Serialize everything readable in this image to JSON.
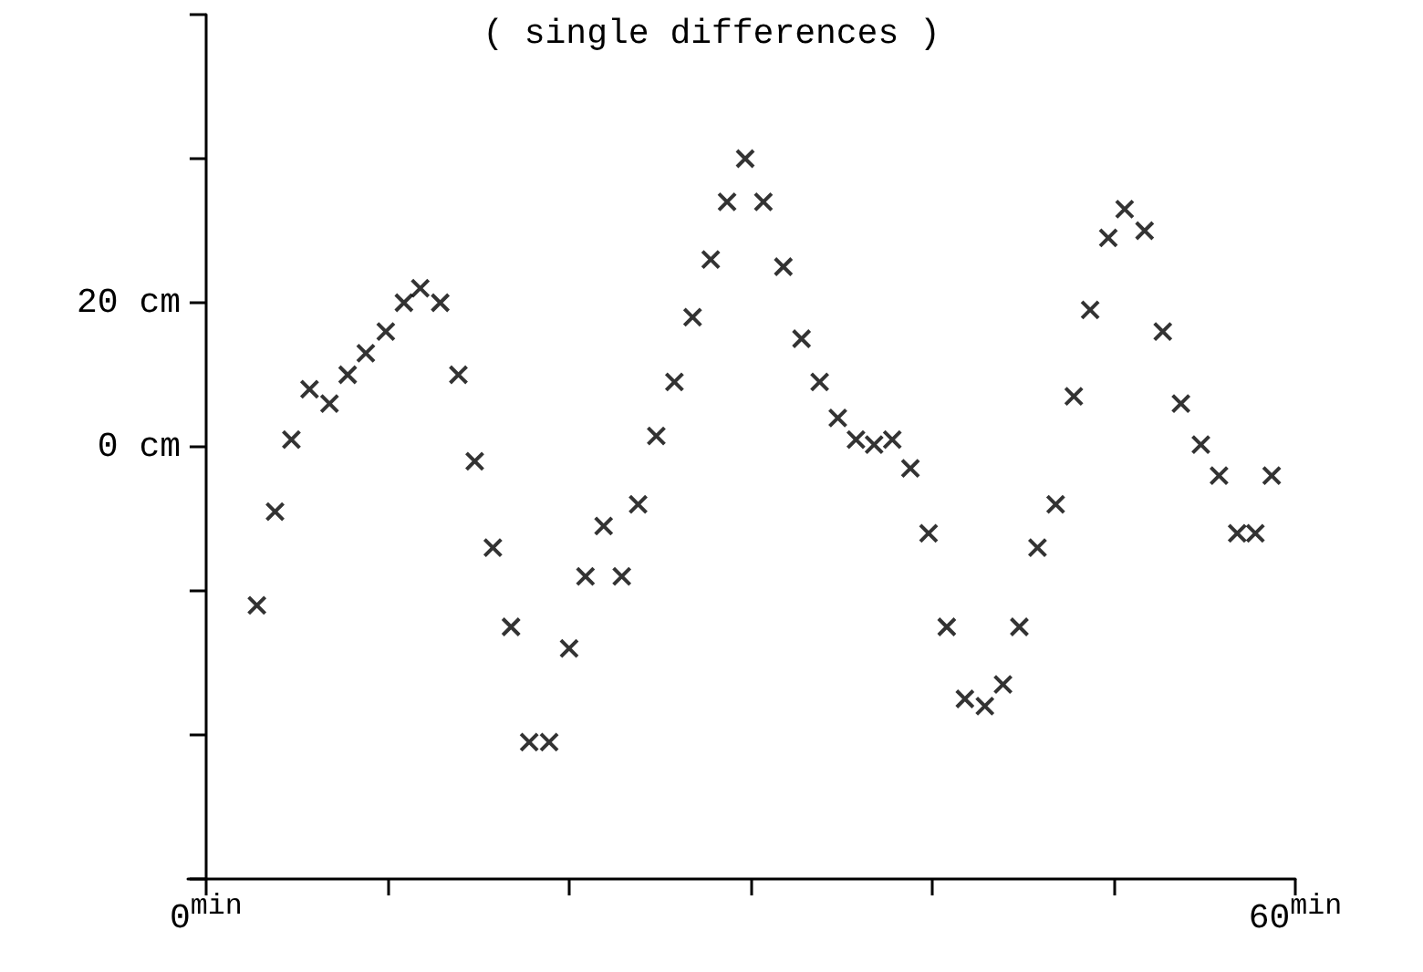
{
  "chart_data": {
    "type": "scatter",
    "title": "( single differences )",
    "x": [
      2.8,
      3.8,
      4.7,
      5.7,
      6.8,
      7.8,
      8.8,
      9.9,
      10.9,
      11.8,
      12.9,
      13.9,
      14.8,
      15.8,
      16.8,
      17.8,
      18.9,
      20.0,
      20.9,
      21.9,
      22.9,
      23.8,
      24.8,
      25.8,
      26.8,
      27.8,
      28.7,
      29.7,
      30.7,
      31.8,
      32.8,
      33.8,
      34.8,
      35.8,
      36.8,
      37.8,
      38.8,
      39.8,
      40.8,
      41.8,
      42.9,
      43.9,
      44.8,
      45.8,
      46.8,
      47.8,
      48.7,
      49.7,
      50.6,
      51.7,
      52.7,
      53.7,
      54.8,
      55.8,
      56.8,
      57.8,
      58.7
    ],
    "series": [
      {
        "color": "#000000",
        "values": [
          -22,
          -9,
          1,
          8,
          6,
          10,
          13,
          16,
          20,
          22,
          20,
          10,
          -2,
          -14,
          -25,
          -41,
          -41,
          -28,
          -18,
          -11,
          -18,
          -8,
          1.5,
          9,
          18,
          26,
          34,
          40,
          34,
          25,
          15,
          9,
          4,
          1,
          0.3,
          1,
          -3,
          -12,
          -25,
          -35,
          -36,
          -33,
          -25,
          -14,
          -8,
          7,
          19,
          29,
          33,
          30,
          16,
          6,
          0.3,
          -4,
          -12,
          -12,
          -4
        ]
      }
    ],
    "xlim": [
      -1,
      60
    ],
    "xticks": [
      {
        "value": 0,
        "label": "0$^{min}$"
      },
      {
        "value": 10,
        "label": null
      },
      {
        "value": 20,
        "label": null
      },
      {
        "value": 30,
        "label": null
      },
      {
        "value": 40,
        "label": null
      },
      {
        "value": 50,
        "label": null
      },
      {
        "value": 60,
        "label": "60$^{min}$"
      }
    ],
    "ylim": [
      -60,
      60
    ],
    "yticks": [
      {
        "value": -60,
        "label": null
      },
      {
        "value": -40,
        "label": null
      },
      {
        "value": -20,
        "label": null
      },
      {
        "value": 0,
        "label": "0 cm"
      },
      {
        "value": 20,
        "label": "20 cm"
      },
      {
        "value": 40,
        "label": null
      },
      {
        "value": 60,
        "label": null
      }
    ],
    "grid": false,
    "marker": "cross"
  }
}
